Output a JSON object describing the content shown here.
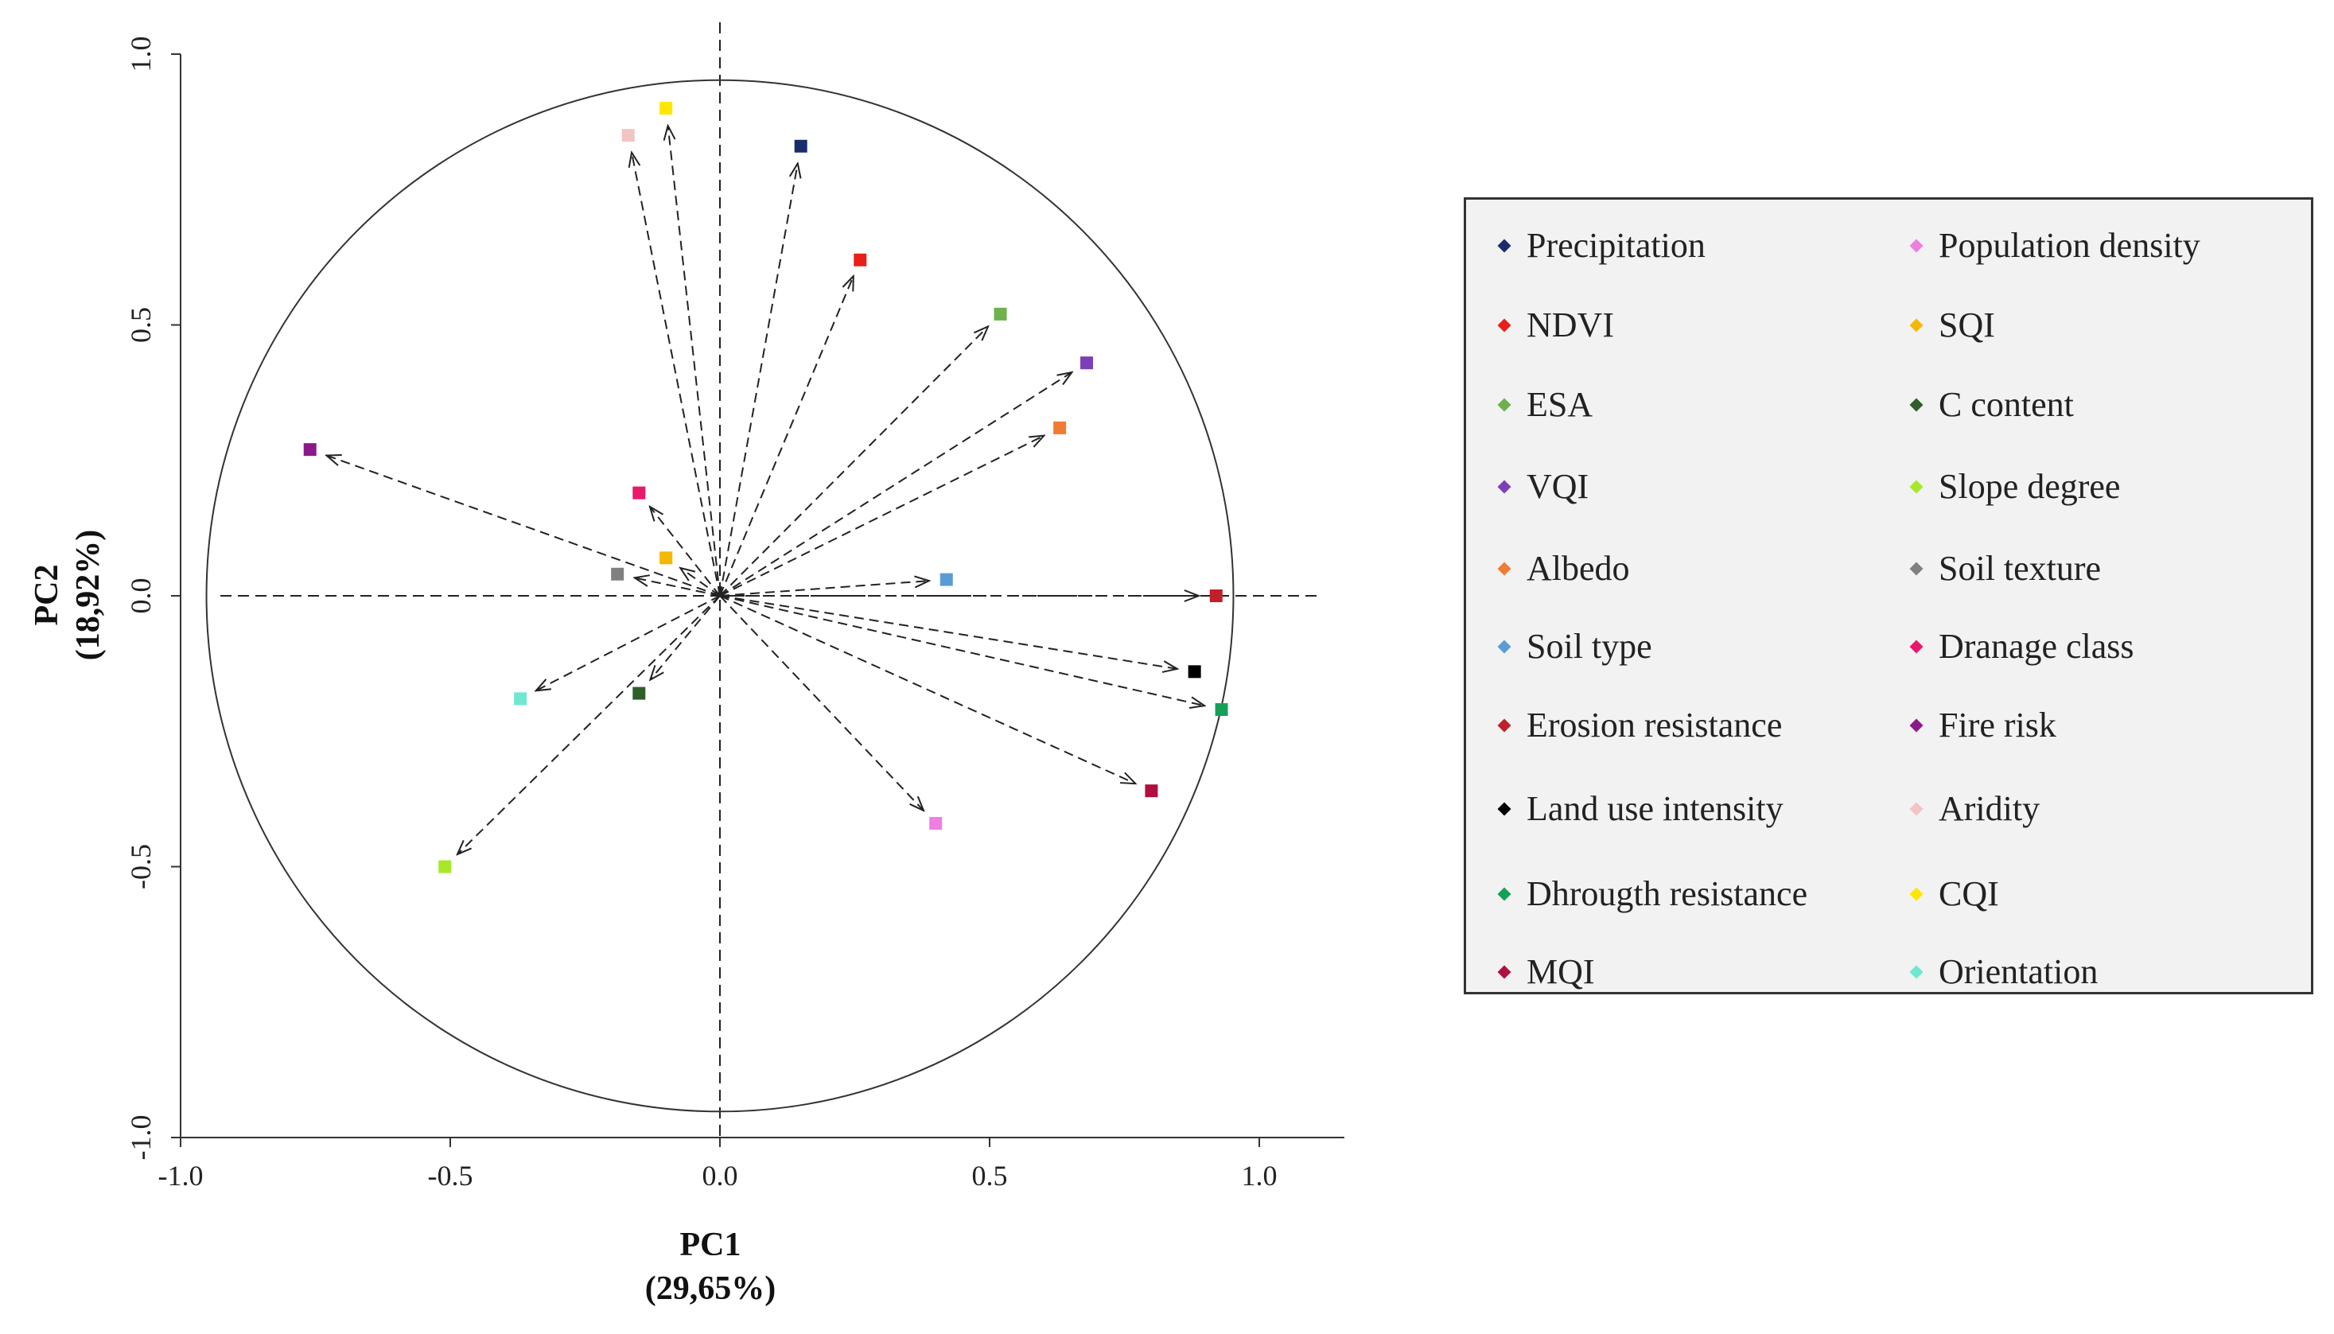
{
  "chart_data": {
    "type": "scatter",
    "title": "",
    "xlabel": "PC1",
    "xlabel_sub": "(29,65%)",
    "ylabel": "PC2",
    "ylabel_sub": "(18,92%)",
    "xlim": [
      -1.0,
      1.0
    ],
    "ylim": [
      -1.0,
      1.0
    ],
    "xticks": [
      "-1.0",
      "-0.5",
      "0.0",
      "0.5",
      "1.0"
    ],
    "yticks": [
      "1.0",
      "0.5",
      "0.0",
      "-0.5",
      "-1.0"
    ],
    "grid": false,
    "legend_position": "right",
    "correlation_circle": true,
    "arrows_from_origin": true,
    "points": [
      {
        "name": "Precipitation",
        "x": 0.15,
        "y": 0.83,
        "color": "#1a2d6b"
      },
      {
        "name": "NDVI",
        "x": 0.26,
        "y": 0.62,
        "color": "#e8201a"
      },
      {
        "name": "ESA",
        "x": 0.52,
        "y": 0.52,
        "color": "#6fb04f"
      },
      {
        "name": "VQI",
        "x": 0.68,
        "y": 0.43,
        "color": "#7b3fb8"
      },
      {
        "name": "Albedo",
        "x": 0.63,
        "y": 0.31,
        "color": "#f07c34"
      },
      {
        "name": "Soil type",
        "x": 0.42,
        "y": 0.03,
        "color": "#5b9bd5"
      },
      {
        "name": "Erosion resistance",
        "x": 0.92,
        "y": 0.0,
        "color": "#c0202a"
      },
      {
        "name": "Land use intensity",
        "x": 0.88,
        "y": -0.14,
        "color": "#000000"
      },
      {
        "name": "Dhrougth resistance",
        "x": 0.93,
        "y": -0.21,
        "color": "#15a05a"
      },
      {
        "name": "MQI",
        "x": 0.8,
        "y": -0.36,
        "color": "#b01040"
      },
      {
        "name": "Population density",
        "x": 0.4,
        "y": -0.42,
        "color": "#ef7ee0"
      },
      {
        "name": "SQI",
        "x": -0.1,
        "y": 0.07,
        "color": "#f5b800"
      },
      {
        "name": "C content",
        "x": -0.15,
        "y": -0.18,
        "color": "#2f5e2a"
      },
      {
        "name": "Slope degree",
        "x": -0.51,
        "y": -0.5,
        "color": "#a8e82a"
      },
      {
        "name": "Soil texture",
        "x": -0.19,
        "y": 0.04,
        "color": "#808080"
      },
      {
        "name": "Dranage class",
        "x": -0.15,
        "y": 0.19,
        "color": "#e8186a"
      },
      {
        "name": "Fire risk",
        "x": -0.76,
        "y": 0.27,
        "color": "#8a1a8a"
      },
      {
        "name": "Aridity",
        "x": -0.17,
        "y": 0.85,
        "color": "#f2c4c4"
      },
      {
        "name": "CQI",
        "x": -0.1,
        "y": 0.9,
        "color": "#ffe600"
      },
      {
        "name": "Orientation",
        "x": -0.37,
        "y": -0.19,
        "color": "#6ee8d0"
      }
    ],
    "legend": [
      [
        "Precipitation",
        "Population density"
      ],
      [
        "NDVI",
        "SQI"
      ],
      [
        "ESA",
        "C content"
      ],
      [
        "VQI",
        "Slope degree"
      ],
      [
        "Albedo",
        "Soil texture"
      ],
      [
        "Soil type",
        "Dranage class"
      ],
      [
        "Erosion resistance",
        "Fire risk"
      ],
      [
        "Land use intensity",
        "Aridity"
      ],
      [
        "Dhrougth resistance",
        "CQI"
      ],
      [
        "MQI",
        "Orientation"
      ]
    ]
  }
}
